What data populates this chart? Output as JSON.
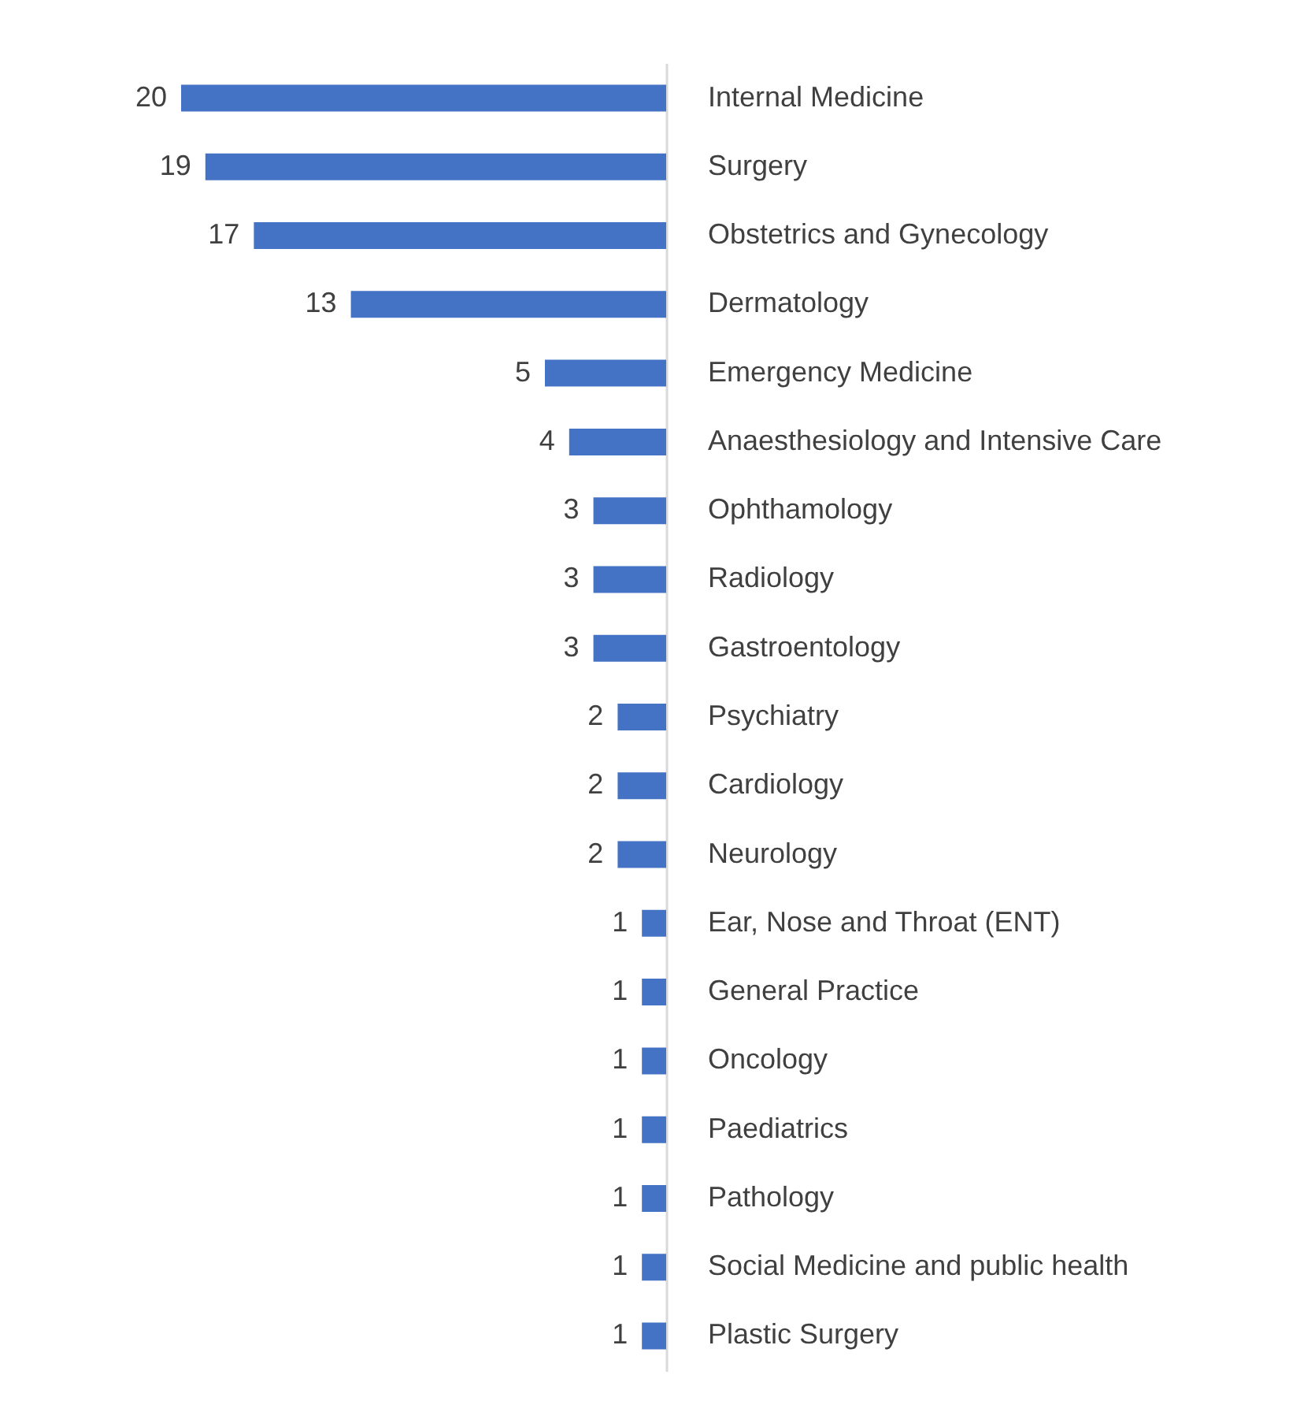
{
  "chart_data": {
    "type": "bar",
    "orientation": "horizontal",
    "data_labels": true,
    "color": "#4472c4",
    "categories": [
      "Internal Medicine",
      "Surgery",
      "Obstetrics and Gynecology",
      "Dermatology",
      "Emergency Medicine",
      "Anaesthesiology and Intensive Care",
      "Ophthamology",
      "Radiology",
      "Gastroentology",
      "Psychiatry",
      "Cardiology",
      "Neurology",
      "Ear, Nose and Throat (ENT)",
      "General Practice",
      "Oncology",
      "Paediatrics",
      "Pathology",
      "Social Medicine and public health",
      "Plastic Surgery"
    ],
    "values": [
      20,
      19,
      17,
      13,
      5,
      4,
      3,
      3,
      3,
      2,
      2,
      2,
      1,
      1,
      1,
      1,
      1,
      1,
      1
    ],
    "grid": false
  }
}
